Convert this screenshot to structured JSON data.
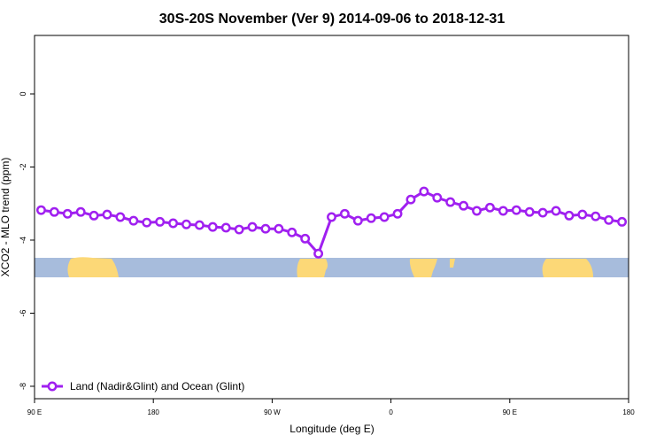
{
  "chart_data": {
    "type": "line",
    "title": "30S-20S November (Ver 9)   2014-09-06 to 2018-12-31",
    "xlabel": "Longitude (deg E)",
    "ylabel": "XCO2 - MLO trend (ppm)",
    "x": [
      95,
      105,
      115,
      125,
      135,
      145,
      155,
      165,
      175,
      185,
      195,
      205,
      215,
      225,
      235,
      245,
      255,
      265,
      275,
      285,
      295,
      305,
      315,
      325,
      335,
      345,
      355,
      365,
      375,
      385,
      395,
      405,
      415,
      425,
      435,
      445,
      455,
      465,
      475,
      485,
      495,
      505,
      515,
      525,
      535
    ],
    "series": [
      {
        "name": "Land (Nadir&Glint) and Ocean (Glint)",
        "color": "#a020f0",
        "values": [
          -3.18,
          -3.23,
          -3.28,
          -3.23,
          -3.33,
          -3.3,
          -3.37,
          -3.47,
          -3.52,
          -3.5,
          -3.54,
          -3.57,
          -3.59,
          -3.64,
          -3.66,
          -3.71,
          -3.64,
          -3.69,
          -3.69,
          -3.79,
          -3.96,
          -4.37,
          -3.37,
          -3.28,
          -3.47,
          -3.4,
          -3.37,
          -3.28,
          -2.89,
          -2.67,
          -2.84,
          -2.96,
          -3.06,
          -3.2,
          -3.11,
          -3.2,
          -3.18,
          -3.23,
          -3.25,
          -3.2,
          -3.33,
          -3.3,
          -3.35,
          -3.45,
          -3.5
        ]
      }
    ],
    "xlim": [
      90,
      540
    ],
    "xticks": [
      {
        "value": 90,
        "label": "90 E"
      },
      180,
      {
        "value": 270,
        "label": "90 W"
      },
      {
        "value": 360,
        "label": "0"
      },
      {
        "value": 450,
        "label": "90 E"
      },
      {
        "value": 540,
        "label": "180"
      }
    ],
    "ylim": [
      -8.34,
      1.6
    ],
    "yticks": [
      0,
      -2,
      -4,
      -6,
      -8
    ],
    "legend": "bottom-left"
  }
}
